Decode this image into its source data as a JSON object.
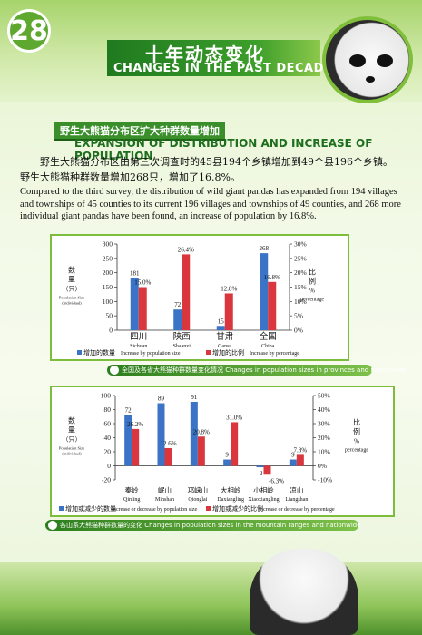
{
  "page_number": "28",
  "header": {
    "title_cn": "十年动态变化",
    "title_en": "CHANGES IN THE PAST DECADE"
  },
  "section": {
    "title_cn": "野生大熊猫分布区扩大种群数量增加",
    "title_en": "EXPANSION OF DISTRIBUTION AND INCREASE OF POPULATION",
    "para_cn": "野生大熊猫分布区由第三次调查时的45县194个乡镇增加到49个县196个乡镇。野生大熊猫种群数量增加268只，增加了16.8%。",
    "para_en": "Compared to the third survey, the distribution of wild giant pandas has expanded from 194 villages and townships of 45 counties to its current 196 villages and townships of 49 counties, and 268 more individual giant pandas have been found, an increase of population by 16.8%."
  },
  "colors": {
    "count_bar": "#3b74c6",
    "percent_bar": "#d9363e",
    "accent": "#3a8f2a"
  },
  "chart_data": [
    {
      "type": "bar",
      "categories": [
        {
          "cn": "四川",
          "en": "Sichuan"
        },
        {
          "cn": "陕西",
          "en": "Shaanxi"
        },
        {
          "cn": "甘肃",
          "en": "Gansu"
        },
        {
          "cn": "全国",
          "en": "China"
        }
      ],
      "series": [
        {
          "name_cn": "增加的数量",
          "name_en": "Increase by population size",
          "axis": "left",
          "values": [
            181,
            72,
            15,
            268
          ],
          "labels": [
            "181",
            "72",
            "15",
            "268"
          ]
        },
        {
          "name_cn": "增加的比例",
          "name_en": "Increase by percentage",
          "axis": "right",
          "values": [
            15.0,
            26.4,
            12.8,
            16.8
          ],
          "labels": [
            "15.0%",
            "26.4%",
            "12.8%",
            "16.8%"
          ]
        }
      ],
      "ylim_left": [
        0,
        300
      ],
      "yticks_left": [
        "0",
        "50",
        "100",
        "150",
        "200",
        "250",
        "300"
      ],
      "ylim_right": [
        0,
        30
      ],
      "yticks_right": [
        "0%",
        "5%",
        "10%",
        "15%",
        "20%",
        "25%",
        "30%"
      ],
      "ylabel_left": {
        "cn1": "数",
        "cn2": "量",
        "cn3": "（只）",
        "en1": "Population Size",
        "en2": "(individual)"
      },
      "ylabel_right": {
        "cn1": "比",
        "cn2": "例",
        "sym": "%",
        "en": "percentage"
      },
      "caption": {
        "cn": "全国及各省大熊猫种群数量变化情况",
        "en": "Changes in population sizes in provinces and nationwide"
      }
    },
    {
      "type": "bar",
      "categories": [
        {
          "cn": "秦岭",
          "en": "Qinling"
        },
        {
          "cn": "岷山",
          "en": "Minshan"
        },
        {
          "cn": "邛崃山",
          "en": "Qionglai"
        },
        {
          "cn": "大相岭",
          "en": "Daxiangling"
        },
        {
          "cn": "小相岭",
          "en": "Xiaoxiangling"
        },
        {
          "cn": "凉山",
          "en": "Liangshan"
        }
      ],
      "series": [
        {
          "name_cn": "增加或减少的数量",
          "name_en": "Increase or decrease by population size",
          "axis": "left",
          "values": [
            72,
            89,
            91,
            9,
            -2,
            9
          ],
          "labels": [
            "72",
            "89",
            "91",
            "9",
            "-2",
            "9"
          ]
        },
        {
          "name_cn": "增加或减少的比例",
          "name_en": "Increase or decrease by percentage",
          "axis": "right",
          "values": [
            26.2,
            12.6,
            20.8,
            31.0,
            -6.3,
            7.8
          ],
          "labels": [
            "26.2%",
            "12.6%",
            "20.8%",
            "31.0%",
            "-6.3%",
            "7.8%"
          ]
        }
      ],
      "ylim_left": [
        -20,
        100
      ],
      "yticks_left": [
        "-20",
        "0",
        "20",
        "40",
        "60",
        "80",
        "100"
      ],
      "ylim_right": [
        -10,
        50
      ],
      "yticks_right": [
        "-10%",
        "0%",
        "10%",
        "20%",
        "30%",
        "40%",
        "50%"
      ],
      "ylabel_left": {
        "cn1": "数",
        "cn2": "量",
        "cn3": "（只）",
        "en1": "Population Size",
        "en2": "(individual)"
      },
      "ylabel_right": {
        "cn1": "比",
        "cn2": "例",
        "sym": "%",
        "en": "percentage"
      },
      "caption": {
        "cn": "各山系大熊猫种群数量的变化",
        "en": "Changes in population sizes in the mountain ranges and nationwide"
      }
    }
  ]
}
